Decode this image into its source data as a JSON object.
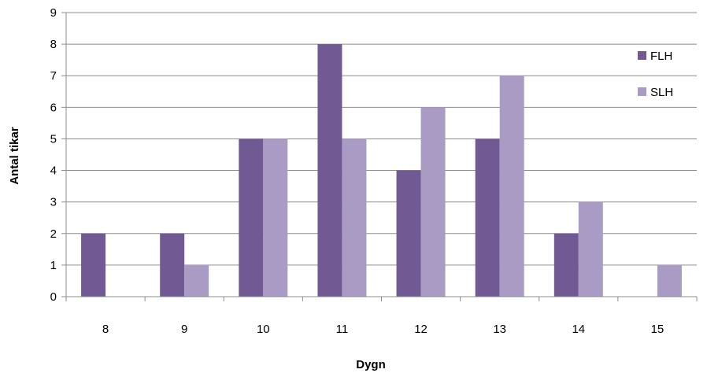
{
  "chart_data": {
    "type": "bar",
    "categories": [
      "8",
      "9",
      "10",
      "11",
      "12",
      "13",
      "14",
      "15"
    ],
    "series": [
      {
        "name": "FLH",
        "values": [
          2,
          2,
          5,
          8,
          4,
          5,
          2,
          0
        ],
        "color": "#715a93"
      },
      {
        "name": "SLH",
        "values": [
          0,
          1,
          5,
          5,
          6,
          7,
          3,
          1
        ],
        "color": "#a99bc3"
      }
    ],
    "xlabel": "Dygn",
    "ylabel": "Antal tikar",
    "ylim": [
      0,
      9
    ],
    "yticks": [
      "0",
      "1",
      "2",
      "3",
      "4",
      "5",
      "6",
      "7",
      "8",
      "9"
    ],
    "grid": true,
    "legend_position": "right"
  }
}
